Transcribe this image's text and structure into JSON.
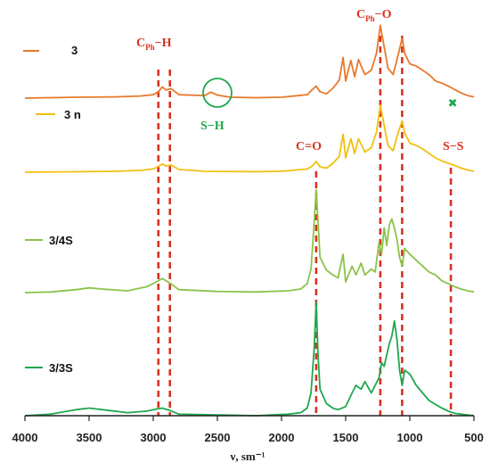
{
  "chart_data": {
    "type": "line",
    "xlabel": "ν, sm⁻¹",
    "xlim": [
      4000,
      500
    ],
    "x_ticks": [
      4000,
      3500,
      3000,
      2500,
      2000,
      1500,
      1000,
      500
    ],
    "x_tick_labels": [
      "4000",
      "3500",
      "3000",
      "2500",
      "2000",
      "1500",
      "1000",
      "500"
    ],
    "legend_style": "inline-left",
    "grid": false,
    "series": [
      {
        "name": "3",
        "color": "#E8792A",
        "x": [
          4000,
          3600,
          3300,
          3100,
          3000,
          2960,
          2930,
          2900,
          2860,
          2800,
          2600,
          2550,
          2500,
          2400,
          2200,
          2000,
          1800,
          1760,
          1730,
          1700,
          1650,
          1600,
          1550,
          1520,
          1500,
          1460,
          1430,
          1400,
          1350,
          1300,
          1260,
          1230,
          1200,
          1170,
          1130,
          1100,
          1060,
          1040,
          1000,
          950,
          900,
          850,
          800,
          750,
          700,
          650,
          600,
          550,
          500
        ],
        "y": [
          0,
          0.2,
          0.3,
          0.5,
          0.8,
          1.5,
          2.6,
          1.9,
          2.2,
          0.8,
          0.6,
          1.4,
          0.7,
          0.2,
          0.1,
          0.2,
          0.8,
          2.0,
          2.8,
          1.5,
          1.0,
          2.3,
          4.2,
          9.5,
          4.0,
          8.8,
          5.0,
          9.0,
          5.5,
          6.5,
          10.5,
          17.0,
          12.0,
          7.0,
          5.5,
          9.0,
          14.0,
          10.5,
          8.0,
          7.5,
          6.5,
          5.5,
          4.0,
          3.5,
          2.8,
          2.0,
          1.2,
          0.6,
          0.3
        ],
        "peak_offset": 0
      },
      {
        "name": "3 n",
        "color": "#F2C010",
        "x": [
          4000,
          3600,
          3300,
          3100,
          3000,
          2960,
          2930,
          2900,
          2860,
          2800,
          2600,
          2200,
          2000,
          1800,
          1760,
          1730,
          1700,
          1650,
          1600,
          1550,
          1520,
          1500,
          1460,
          1430,
          1400,
          1350,
          1300,
          1260,
          1230,
          1200,
          1170,
          1130,
          1100,
          1060,
          1040,
          1000,
          950,
          900,
          850,
          800,
          750,
          700,
          650,
          600,
          550,
          500
        ],
        "y": [
          0,
          0.1,
          0.2,
          0.4,
          0.7,
          1.3,
          1.8,
          1.4,
          1.6,
          0.6,
          0.2,
          0.1,
          0.2,
          0.7,
          1.4,
          2.4,
          1.2,
          0.9,
          2.0,
          3.5,
          8.5,
          3.2,
          7.5,
          4.2,
          7.5,
          4.5,
          5.5,
          9.0,
          15.0,
          10.5,
          6.0,
          4.8,
          8.0,
          11.5,
          8.8,
          6.5,
          6.0,
          5.2,
          4.2,
          3.2,
          2.5,
          2.0,
          1.5,
          0.9,
          0.5,
          0.2
        ],
        "peak_offset": 0
      },
      {
        "name": "3/4S",
        "color": "#8BC34A",
        "x": [
          4000,
          3800,
          3600,
          3500,
          3400,
          3200,
          3050,
          2970,
          2930,
          2870,
          2800,
          2500,
          2200,
          1950,
          1850,
          1800,
          1770,
          1745,
          1730,
          1715,
          1700,
          1650,
          1600,
          1560,
          1520,
          1500,
          1450,
          1420,
          1380,
          1350,
          1300,
          1270,
          1240,
          1220,
          1200,
          1180,
          1160,
          1140,
          1120,
          1100,
          1080,
          1060,
          1040,
          1000,
          950,
          900,
          850,
          800,
          750,
          700,
          650,
          600,
          550,
          500
        ],
        "y": [
          0,
          0.1,
          0.5,
          0.8,
          0.6,
          0.3,
          1.0,
          1.9,
          2.4,
          1.6,
          0.5,
          0.2,
          0.1,
          0.3,
          0.6,
          1.5,
          4.0,
          12.0,
          17.5,
          12.0,
          6.0,
          3.8,
          3.0,
          2.5,
          6.5,
          1.8,
          4.5,
          3.0,
          5.0,
          3.0,
          4.0,
          3.5,
          8.5,
          6.5,
          11.0,
          8.0,
          11.5,
          12.5,
          11.0,
          9.0,
          6.0,
          4.5,
          7.5,
          6.5,
          5.5,
          4.5,
          3.5,
          3.0,
          2.0,
          1.5,
          1.0,
          0.6,
          0.3,
          0.1
        ],
        "peak_offset": 0
      },
      {
        "name": "3/3S",
        "color": "#1FA84F",
        "x": [
          4000,
          3800,
          3600,
          3500,
          3400,
          3200,
          3050,
          2970,
          2930,
          2870,
          2800,
          2500,
          2200,
          1950,
          1850,
          1800,
          1770,
          1745,
          1730,
          1715,
          1700,
          1650,
          1600,
          1560,
          1500,
          1450,
          1420,
          1380,
          1350,
          1300,
          1270,
          1240,
          1220,
          1200,
          1180,
          1160,
          1140,
          1120,
          1100,
          1080,
          1060,
          1040,
          1000,
          950,
          900,
          850,
          800,
          750,
          700,
          650,
          600,
          550,
          500
        ],
        "y": [
          0,
          0.2,
          0.8,
          1.0,
          0.8,
          0.4,
          0.6,
          0.9,
          1.0,
          0.7,
          0.2,
          0.1,
          0.0,
          0.2,
          0.4,
          1.0,
          3.0,
          9.0,
          15.0,
          8.0,
          3.5,
          1.6,
          1.0,
          0.8,
          1.2,
          3.0,
          4.0,
          3.5,
          4.5,
          3.0,
          4.0,
          5.0,
          7.0,
          6.5,
          8.0,
          9.5,
          10.5,
          12.5,
          10.0,
          6.0,
          4.0,
          6.0,
          5.5,
          4.0,
          3.0,
          2.0,
          1.5,
          1.0,
          0.6,
          0.3,
          0.2,
          0.1,
          0.0
        ],
        "peak_offset": 0
      }
    ],
    "reference_lines": [
      2960,
      2870,
      1730,
      1230,
      1060,
      680
    ],
    "annotations": {
      "c_ph_h": {
        "main": "C",
        "sub": "Ph",
        "rest": "−H",
        "color": "#D7321E"
      },
      "c_ph_o": {
        "main": "C",
        "sub": "Ph",
        "rest": "−O",
        "color": "#D7321E"
      },
      "s_h": {
        "text": "S−H",
        "color": "#1FA84F"
      },
      "c_o": {
        "text": "C=O",
        "color": "#D7321E"
      },
      "s_s": {
        "text": "S−S",
        "color": "#D7321E"
      }
    },
    "markers": {
      "s_h_circle_x": 2500,
      "cross_x": 680,
      "cross_symbol": "✖"
    },
    "reference_line_color": "#D7321E",
    "axis_color": "#222222"
  }
}
